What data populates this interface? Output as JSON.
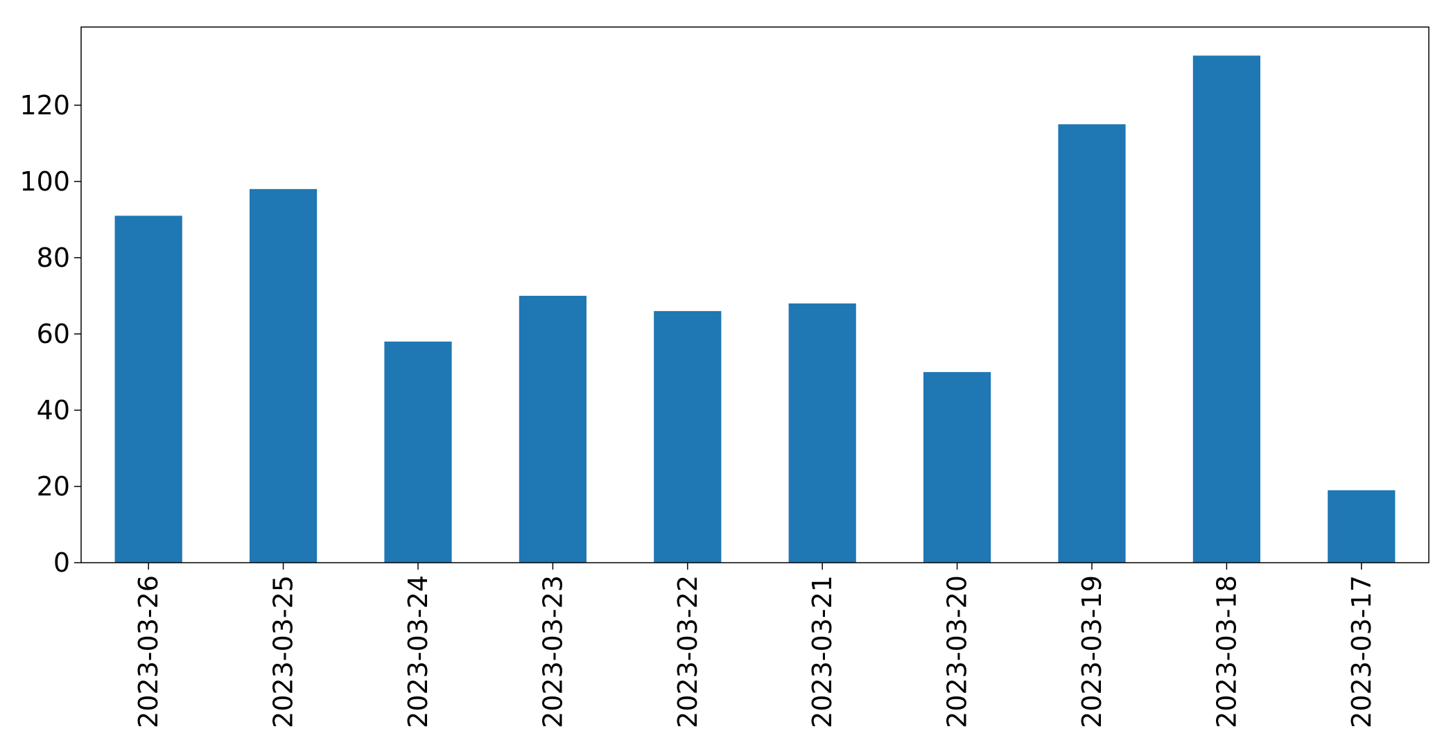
{
  "chart_data": {
    "type": "bar",
    "title": "",
    "xlabel": "",
    "ylabel": "",
    "categories": [
      "2023-03-26",
      "2023-03-25",
      "2023-03-24",
      "2023-03-23",
      "2023-03-22",
      "2023-03-21",
      "2023-03-20",
      "2023-03-19",
      "2023-03-18",
      "2023-03-17"
    ],
    "values": [
      91,
      98,
      58,
      70,
      66,
      68,
      50,
      115,
      133,
      19
    ],
    "ylim": [
      0,
      140
    ],
    "yticks": [
      0,
      20,
      40,
      60,
      80,
      100,
      120
    ],
    "ytick_labels": [
      "0",
      "20",
      "40",
      "60",
      "80",
      "100",
      "120"
    ],
    "grid": false,
    "legend": "none",
    "colors": {
      "bar": "#1f77b4",
      "axis": "#000000",
      "background": "#ffffff"
    }
  }
}
